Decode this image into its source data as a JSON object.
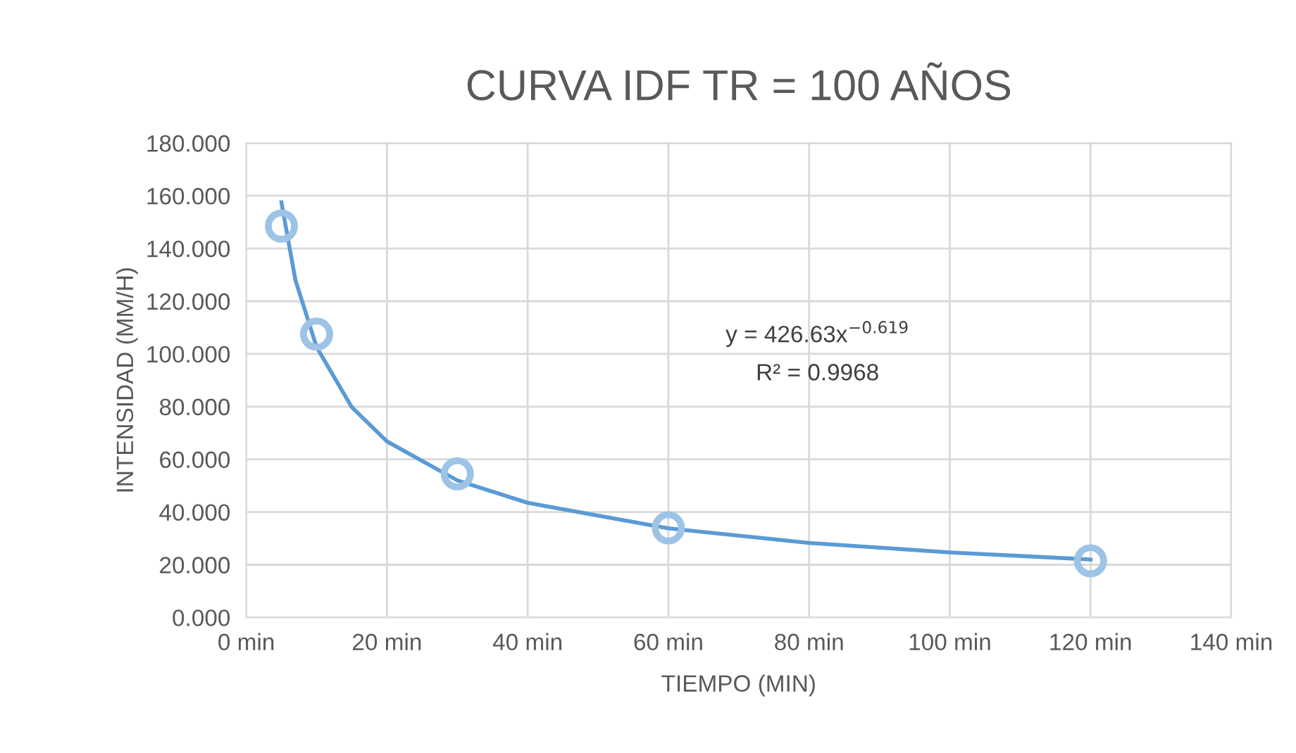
{
  "chart_data": {
    "type": "scatter",
    "title": "CURVA IDF TR = 100 AÑOS",
    "xlabel": "TIEMPO (MIN)",
    "ylabel": "INTENSIDAD (MM/H)",
    "x": [
      5,
      10,
      30,
      60,
      120
    ],
    "series": [
      {
        "color": "#9dc3e6",
        "marker": "circle",
        "values": [
          148.5,
          107.5,
          54.5,
          34,
          21.5
        ]
      },
      {
        "type": "line",
        "color": "#5b9bd5",
        "marker": "none",
        "line_style": "solid",
        "x": [
          5,
          7,
          10,
          15,
          20,
          30,
          40,
          60,
          80,
          100,
          120
        ],
        "values": [
          157.5,
          127.9,
          102.6,
          79.8,
          66.8,
          52.0,
          43.5,
          33.8,
          28.3,
          24.7,
          22.0
        ]
      }
    ],
    "annotations": [
      "y = 426.63x$^{−0.619}$",
      "R² = 0.9968"
    ],
    "xlim": [
      0,
      140
    ],
    "xticks": [
      {
        "value": 0,
        "label": "0 min"
      },
      {
        "value": 20,
        "label": "20 min"
      },
      {
        "value": 40,
        "label": "40 min"
      },
      {
        "value": 60,
        "label": "60 min"
      },
      {
        "value": 80,
        "label": "80 min"
      },
      {
        "value": 100,
        "label": "100 min"
      },
      {
        "value": 120,
        "label": "120 min"
      },
      {
        "value": 140,
        "label": "140 min"
      }
    ],
    "ylim": [
      0,
      180
    ],
    "yticks": [
      {
        "value": 0,
        "label": "0.000"
      },
      {
        "value": 20,
        "label": "20.000"
      },
      {
        "value": 40,
        "label": "40.000"
      },
      {
        "value": 60,
        "label": "60.000"
      },
      {
        "value": 80,
        "label": "80.000"
      },
      {
        "value": 100,
        "label": "100.000"
      },
      {
        "value": 120,
        "label": "120.000"
      },
      {
        "value": 140,
        "label": "140.000"
      },
      {
        "value": 160,
        "label": "160.000"
      },
      {
        "value": 180,
        "label": "180.000"
      }
    ],
    "grid": true
  }
}
